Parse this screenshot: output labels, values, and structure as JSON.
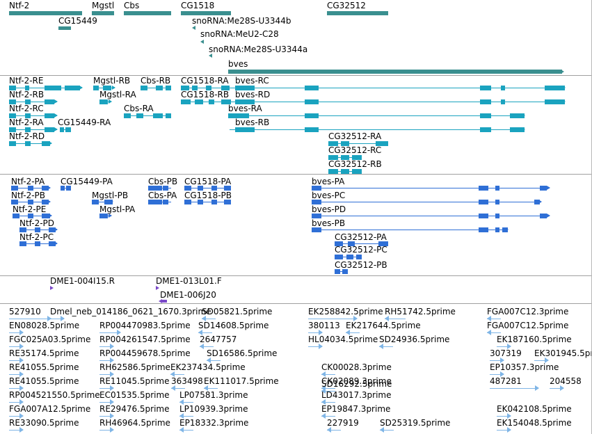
{
  "colors": {
    "gene": "#3a8f8f",
    "transcript": "#1aa3bf",
    "protein": "#2f6fd6",
    "clone": "#7a48c8",
    "est": "#7fb5e6"
  },
  "gene_track": {
    "labels": [
      "Ntf-2",
      "CG15449",
      "Mgstl",
      "Cbs",
      "CG1518",
      "snoRNA:Me28S-U3344b",
      "snoRNA:MeU2-C28",
      "snoRNA:Me28S-U3344a",
      "CG32512",
      "bves"
    ]
  },
  "transcript_track": {
    "labels": [
      "Ntf-2-RE",
      "Mgstl-RB",
      "Cbs-RB",
      "CG1518-RA",
      "bves-RC",
      "Ntf-2-RB",
      "Mgstl-RA",
      "CG1518-RB",
      "bves-RD",
      "Ntf-2-RC",
      "Cbs-RA",
      "bves-RA",
      "Ntf-2-RA",
      "CG15449-RA",
      "bves-RB",
      "Ntf-2-RD",
      "CG32512-RA",
      "CG32512-RC",
      "CG32512-RB"
    ]
  },
  "protein_track": {
    "labels": [
      "Ntf-2-PA",
      "CG15449-PA",
      "Cbs-PB",
      "CG1518-PA",
      "bves-PA",
      "Ntf-2-PB",
      "Mgstl-PB",
      "Cbs-PA",
      "CG1518-PB",
      "bves-PC",
      "Ntf-2-PE",
      "Mgstl-PA",
      "bves-PD",
      "Ntf-2-PD",
      "bves-PB",
      "Ntf-2-PC",
      "CG32512-PA",
      "CG32512-PC",
      "CG32512-PB"
    ]
  },
  "clone_track": {
    "labels": [
      "DME1-004I15.R",
      "DME1-013L01.F",
      "DME1-006J20"
    ]
  },
  "est_track": {
    "labels": [
      "527910",
      "Dmel_neb_014186_0621_1670.3prime",
      "SD05821.5prime",
      "EK258842.5prime",
      "RH51742.5prime",
      "FGA007C12.3prime",
      "EN08028.5prime",
      "RP004470983.5prime",
      "SD14608.5prime",
      "380113",
      "EK217644.5prime",
      "FGA007C12.5prime",
      "FGC025A03.5prime",
      "RP004261547.5prime",
      "2647757",
      "HL04034.5prime",
      "SD24936.5prime",
      "EK187160.5prime",
      "RE35174.5prime",
      "RP004459678.5prime",
      "SD16586.5prime",
      "307319",
      "EK301945.5prime",
      "RE41055.5prime",
      "RH62586.5prime",
      "EK237434.5prime",
      "CK00028.3prime",
      "CK02089.3prime",
      "EP10357.3prime",
      "RE41055.5prime",
      "RE11045.5prime",
      "363498",
      "EK111017.5prime",
      "SD16292.5prime",
      "487281",
      "204558",
      "RP004521550.5prime",
      "EC01535.5prime",
      "LP07581.3prime",
      "LD43017.3prime",
      "FGA007A12.5prime",
      "RE29476.5prime",
      "LP10939.3prime",
      "EP19847.3prime",
      "EK042108.5prime",
      "RE33090.5prime",
      "RH46964.5prime",
      "EP18332.3prime",
      "227919",
      "SD25319.5prime",
      "EK154048.5prime"
    ]
  }
}
